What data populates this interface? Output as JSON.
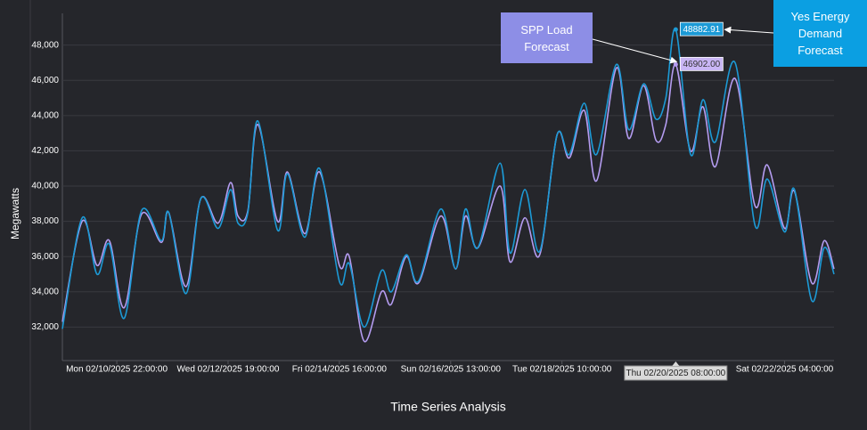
{
  "chart_data": {
    "type": "line",
    "x_label": "Time Series Analysis",
    "y_label": "Megawatts",
    "x": [
      "02/10/2025 00:00:00",
      "02/10/2025 08:00:00",
      "02/10/2025 14:00:00",
      "02/10/2025 19:00:00",
      "02/11/2025 01:00:00",
      "02/11/2025 08:00:00",
      "02/11/2025 16:00:00",
      "02/11/2025 19:00:00",
      "02/12/2025 02:00:00",
      "02/12/2025 08:00:00",
      "02/12/2025 15:00:00",
      "02/12/2025 20:00:00",
      "02/12/2025 23:00:00",
      "02/13/2025 03:00:00",
      "02/13/2025 07:00:00",
      "02/13/2025 15:00:00",
      "02/13/2025 19:00:00",
      "02/14/2025 02:00:00",
      "02/14/2025 08:00:00",
      "02/14/2025 16:00:00",
      "02/14/2025 20:00:00",
      "02/15/2025 02:00:00",
      "02/15/2025 09:00:00",
      "02/15/2025 13:00:00",
      "02/15/2025 19:00:00",
      "02/16/2025 00:00:00",
      "02/16/2025 09:00:00",
      "02/16/2025 15:00:00",
      "02/16/2025 19:00:00",
      "02/17/2025 00:00:00",
      "02/17/2025 09:00:00",
      "02/17/2025 13:00:00",
      "02/17/2025 19:00:00",
      "02/18/2025 01:00:00",
      "02/18/2025 08:00:00",
      "02/18/2025 13:00:00",
      "02/18/2025 19:00:00",
      "02/19/2025 00:00:00",
      "02/19/2025 08:00:00",
      "02/19/2025 13:00:00",
      "02/19/2025 19:00:00",
      "02/20/2025 00:00:00",
      "02/20/2025 04:00:00",
      "02/20/2025 08:00:00",
      "02/20/2025 14:00:00",
      "02/20/2025 19:00:00",
      "02/21/2025 00:00:00",
      "02/21/2025 08:00:00",
      "02/21/2025 16:00:00",
      "02/21/2025 21:00:00",
      "02/22/2025 04:00:00",
      "02/22/2025 08:00:00",
      "02/22/2025 15:00:00",
      "02/22/2025 20:00:00",
      "02/23/2025 00:00:00"
    ],
    "series": [
      {
        "name": "SPP Load Forecast",
        "color": "#b49cf0",
        "values": [
          32300,
          38000,
          35500,
          36900,
          33100,
          38400,
          36800,
          38500,
          34300,
          39300,
          37900,
          40200,
          38300,
          38600,
          43500,
          38000,
          40800,
          37300,
          40800,
          35500,
          36000,
          31200,
          34000,
          33300,
          36000,
          34500,
          38300,
          35300,
          38300,
          36500,
          40000,
          35700,
          38200,
          36100,
          42900,
          41600,
          44300,
          40300,
          46700,
          42700,
          45700,
          42600,
          43500,
          46902.0,
          42000,
          44500,
          41100,
          46100,
          38900,
          41200,
          37600,
          39700,
          34500,
          36900,
          35300
        ]
      },
      {
        "name": "Yes Energy Demand Forecast",
        "color": "#1c9ad6",
        "values": [
          31900,
          38200,
          35000,
          36700,
          32500,
          38600,
          36900,
          38500,
          33900,
          39300,
          37600,
          39800,
          37900,
          38500,
          43700,
          37500,
          40700,
          37100,
          41000,
          34600,
          35600,
          32000,
          35200,
          34000,
          36100,
          34600,
          38700,
          35300,
          38700,
          36500,
          41300,
          36200,
          39800,
          36300,
          42900,
          41800,
          44700,
          41800,
          46900,
          43200,
          45800,
          43800,
          45000,
          48882.91,
          41800,
          44900,
          42500,
          47000,
          37800,
          40400,
          37400,
          39800,
          33500,
          36500,
          35000
        ]
      }
    ],
    "xlim": [
      "02/10/2025 00:00:00",
      "02/23/2025 00:00:00"
    ],
    "xticks": [
      {
        "value": "02/10/2025 22:00:00",
        "label": "Mon 02/10/2025 22:00:00"
      },
      {
        "value": "02/12/2025 19:00:00",
        "label": "Wed 02/12/2025 19:00:00"
      },
      {
        "value": "02/14/2025 16:00:00",
        "label": "Fri 02/14/2025 16:00:00"
      },
      {
        "value": "02/16/2025 13:00:00",
        "label": "Sun 02/16/2025 13:00:00"
      },
      {
        "value": "02/18/2025 10:00:00",
        "label": "Tue 02/18/2025 10:00:00"
      },
      {
        "value": "02/22/2025 04:00:00",
        "label": "Sat 02/22/2025 04:00:00"
      }
    ],
    "ylim": [
      30100,
      49800
    ],
    "yticks": [
      {
        "value": 32000,
        "label": "32,000"
      },
      {
        "value": 34000,
        "label": "34,000"
      },
      {
        "value": 36000,
        "label": "36,000"
      },
      {
        "value": 38000,
        "label": "38,000"
      },
      {
        "value": 40000,
        "label": "40,000"
      },
      {
        "value": 42000,
        "label": "42,000"
      },
      {
        "value": 44000,
        "label": "44,000"
      },
      {
        "value": 46000,
        "label": "46,000"
      },
      {
        "value": 48000,
        "label": "48,000"
      }
    ],
    "grid": true,
    "hover": {
      "x": "02/20/2025 08:00:00",
      "x_label": "Thu 02/20/2025 08:00:00",
      "value_labels": [
        "46902.00",
        "48882.91"
      ]
    }
  }
}
